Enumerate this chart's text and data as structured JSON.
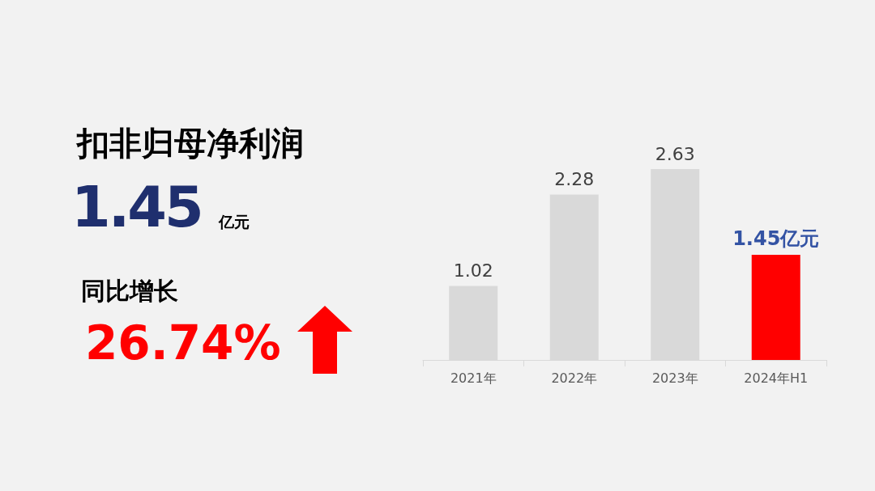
{
  "chart_data": {
    "type": "bar",
    "categories": [
      "2021年",
      "2022年",
      "2023年",
      "2024年H1"
    ],
    "values": [
      1.02,
      2.28,
      2.63,
      1.45
    ],
    "colors": [
      "#d9d9d9",
      "#d9d9d9",
      "#d9d9d9",
      "#ff0000"
    ],
    "value_labels": [
      "1.02",
      "2.28",
      "2.63",
      "1.45亿元"
    ],
    "annotations": [
      "扣非归母净利润",
      "1.45",
      "亿元",
      "同比增长",
      "26.74%"
    ]
  }
}
